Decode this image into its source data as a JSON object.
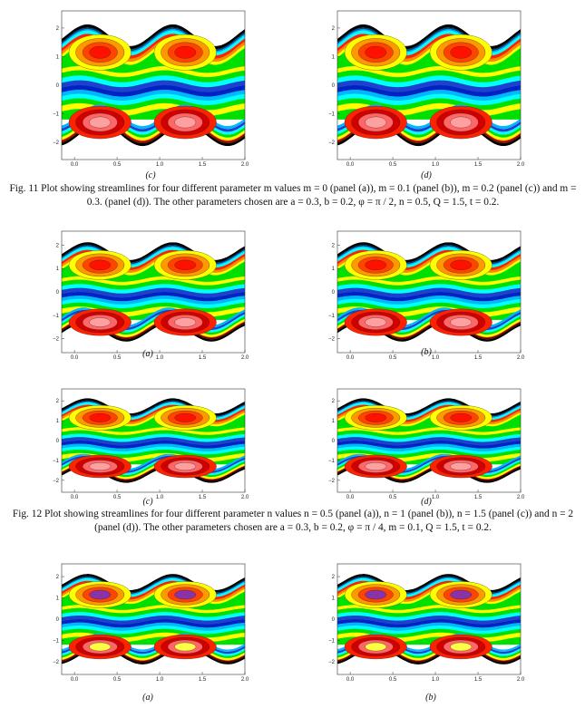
{
  "figure11": {
    "caption": "Fig. 11 Plot showing streamlines for four different parameter m values m = 0 (panel (a)), m = 0.1 (panel (b)), m = 0.2 (panel (c)) and m = 0.3. (panel (d)). The other parameters chosen are a = 0.3, b = 0.2, φ = π / 2, n = 0.5, Q = 1.5, t = 0.2.",
    "panels": [
      {
        "label": "(c)"
      },
      {
        "label": "(d)"
      }
    ]
  },
  "figure12": {
    "caption": "Fig. 12 Plot showing streamlines for four different parameter n values n = 0.5 (panel (a)), n = 1 (panel (b)), n = 1.5 (panel (c)) and n = 2 (panel (d)). The other parameters chosen are a = 0.3, b = 0.2, φ = π / 4, m = 0.1, Q = 1.5, t = 0.2.",
    "panels": [
      {
        "label": "(a)"
      },
      {
        "label": "(b)"
      },
      {
        "label": "(c)"
      },
      {
        "label": "(d)"
      }
    ]
  },
  "figure13": {
    "panels": [
      {
        "label": "(a)"
      },
      {
        "label": "(b)"
      }
    ]
  },
  "axes": {
    "x_ticks": [
      "0.0",
      "0.5",
      "1.0",
      "1.5",
      "2.0"
    ],
    "y_ticks": [
      "2",
      "1",
      "0",
      "−1",
      "−2"
    ],
    "xlim": [
      -0.15,
      2.0
    ],
    "ylim": [
      -2.6,
      2.6
    ]
  },
  "colors": {
    "contour_bands": [
      "#000000",
      "#2233cc",
      "#00b7ff",
      "#00ffff",
      "#00e000",
      "#ffff00",
      "#ff8800",
      "#ff2200",
      "#d40000",
      "#ff9999"
    ]
  }
}
